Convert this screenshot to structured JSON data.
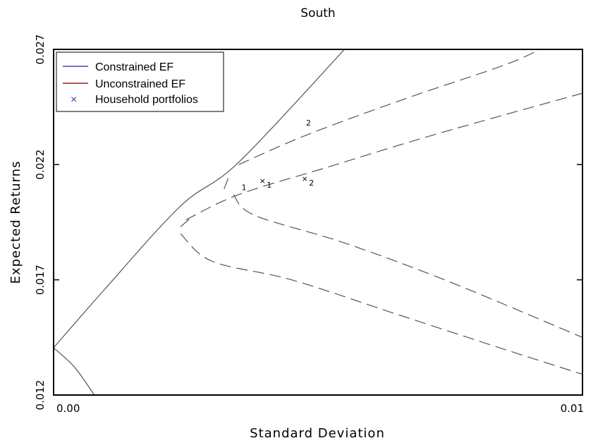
{
  "chart_data": {
    "type": "line",
    "title": "South",
    "xlabel": "Standard Deviation",
    "ylabel": "Expected Returns",
    "xlim": [
      0.0,
      0.01
    ],
    "ylim": [
      0.012,
      0.027
    ],
    "x_tick_labels": [
      {
        "value": 0.0,
        "label": "0.00"
      },
      {
        "value": 0.01,
        "label": "0.01"
      }
    ],
    "y_tick_labels": [
      {
        "value": 0.012,
        "label": "0.012"
      },
      {
        "value": 0.017,
        "label": "0.017"
      },
      {
        "value": 0.022,
        "label": "0.022"
      },
      {
        "value": 0.027,
        "label": "0.027"
      }
    ],
    "legend": {
      "position": "top-left",
      "entries": [
        {
          "name": "Constrained EF",
          "marker": "line",
          "color": "#5b3fa8"
        },
        {
          "name": "Unconstrained EF",
          "marker": "line",
          "color": "#a02020"
        },
        {
          "name": "Household portfolios",
          "marker": "x",
          "color": "#3b3ba0"
        }
      ]
    },
    "series": [
      {
        "style": "solid",
        "color": "#555555",
        "points": [
          [
            0.0,
            0.01405
          ],
          [
            0.00095,
            0.01655
          ],
          [
            0.0024,
            0.0202
          ],
          [
            0.0035,
            0.0221
          ],
          [
            0.0055,
            0.027
          ]
        ]
      },
      {
        "style": "solid",
        "color": "#555555",
        "points": [
          [
            0.0,
            0.01405
          ],
          [
            0.0004,
            0.0132
          ],
          [
            0.00077,
            0.012
          ]
        ]
      },
      {
        "style": "dashed",
        "color": "#555555",
        "points": [
          [
            0.0035,
            0.022
          ],
          [
            0.0048,
            0.0233
          ],
          [
            0.0067,
            0.0249
          ],
          [
            0.0085,
            0.0263
          ],
          [
            0.0092,
            0.027
          ]
        ]
      },
      {
        "style": "dashed",
        "color": "#555555",
        "points": [
          [
            0.0025,
            0.0196
          ],
          [
            0.0035,
            0.0207
          ],
          [
            0.0052,
            0.0219
          ],
          [
            0.0072,
            0.0233
          ],
          [
            0.01,
            0.0251
          ]
        ]
      },
      {
        "style": "dashed",
        "color": "#555555",
        "points": [
          [
            0.0034,
            0.0207
          ],
          [
            0.0038,
            0.0198
          ],
          [
            0.0055,
            0.0186
          ],
          [
            0.0075,
            0.0169
          ],
          [
            0.01,
            0.0145
          ]
        ]
      },
      {
        "style": "dashed",
        "color": "#555555",
        "points": [
          [
            0.0024,
            0.019
          ],
          [
            0.003,
            0.0178
          ],
          [
            0.0045,
            0.017
          ],
          [
            0.0065,
            0.0155
          ],
          [
            0.0085,
            0.014
          ],
          [
            0.01,
            0.0129
          ]
        ]
      },
      {
        "style": "dashed",
        "color": "#555555",
        "points": [
          [
            0.0033,
            0.0214
          ],
          [
            0.0032,
            0.0208
          ]
        ]
      },
      {
        "style": "dashed",
        "color": "#555555",
        "points": [
          [
            0.0024,
            0.0193
          ],
          [
            0.0026,
            0.0197
          ]
        ]
      }
    ],
    "household_points": [
      {
        "x": 0.00395,
        "y": 0.0213,
        "label": "1"
      },
      {
        "x": 0.00475,
        "y": 0.0214,
        "label": "2"
      }
    ],
    "annotations": [
      {
        "x": 0.0036,
        "y": 0.0209,
        "text": "1"
      },
      {
        "x": 0.00482,
        "y": 0.0237,
        "text": "2"
      }
    ]
  }
}
